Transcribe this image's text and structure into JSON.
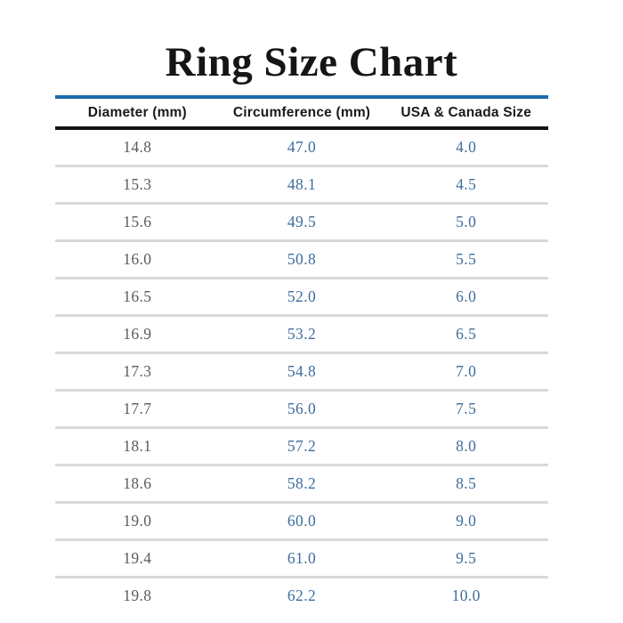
{
  "title": "Ring Size Chart",
  "colors": {
    "title_text": "#151515",
    "top_rule_blue": "#1c6bad",
    "header_rule_black": "#141414",
    "row_separator_gray": "#d9d9d9",
    "diameter_text_gray": "#5d5b57",
    "value_text_blue": "#3e6d9c",
    "background": "#ffffff"
  },
  "table": {
    "headers": [
      "Diameter (mm)",
      "Circumference (mm)",
      "USA & Canada Size"
    ],
    "rows": [
      [
        "14.8",
        "47.0",
        "4.0"
      ],
      [
        "15.3",
        "48.1",
        "4.5"
      ],
      [
        "15.6",
        "49.5",
        "5.0"
      ],
      [
        "16.0",
        "50.8",
        "5.5"
      ],
      [
        "16.5",
        "52.0",
        "6.0"
      ],
      [
        "16.9",
        "53.2",
        "6.5"
      ],
      [
        "17.3",
        "54.8",
        "7.0"
      ],
      [
        "17.7",
        "56.0",
        "7.5"
      ],
      [
        "18.1",
        "57.2",
        "8.0"
      ],
      [
        "18.6",
        "58.2",
        "8.5"
      ],
      [
        "19.0",
        "60.0",
        "9.0"
      ],
      [
        "19.4",
        "61.0",
        "9.5"
      ],
      [
        "19.8",
        "62.2",
        "10.0"
      ]
    ]
  },
  "chart_data": {
    "type": "table",
    "title": "Ring Size Chart",
    "columns": [
      "Diameter (mm)",
      "Circumference (mm)",
      "USA & Canada Size"
    ],
    "rows": [
      [
        14.8,
        47.0,
        4.0
      ],
      [
        15.3,
        48.1,
        4.5
      ],
      [
        15.6,
        49.5,
        5.0
      ],
      [
        16.0,
        50.8,
        5.5
      ],
      [
        16.5,
        52.0,
        6.0
      ],
      [
        16.9,
        53.2,
        6.5
      ],
      [
        17.3,
        54.8,
        7.0
      ],
      [
        17.7,
        56.0,
        7.5
      ],
      [
        18.1,
        57.2,
        8.0
      ],
      [
        18.6,
        58.2,
        8.5
      ],
      [
        19.0,
        60.0,
        9.0
      ],
      [
        19.4,
        61.0,
        9.5
      ],
      [
        19.8,
        62.2,
        10.0
      ]
    ],
    "layout": {
      "header_top_rule_color": "#1c6bad",
      "header_bottom_rule_color": "#141414",
      "row_separators": true,
      "column_alignment": "center"
    }
  }
}
